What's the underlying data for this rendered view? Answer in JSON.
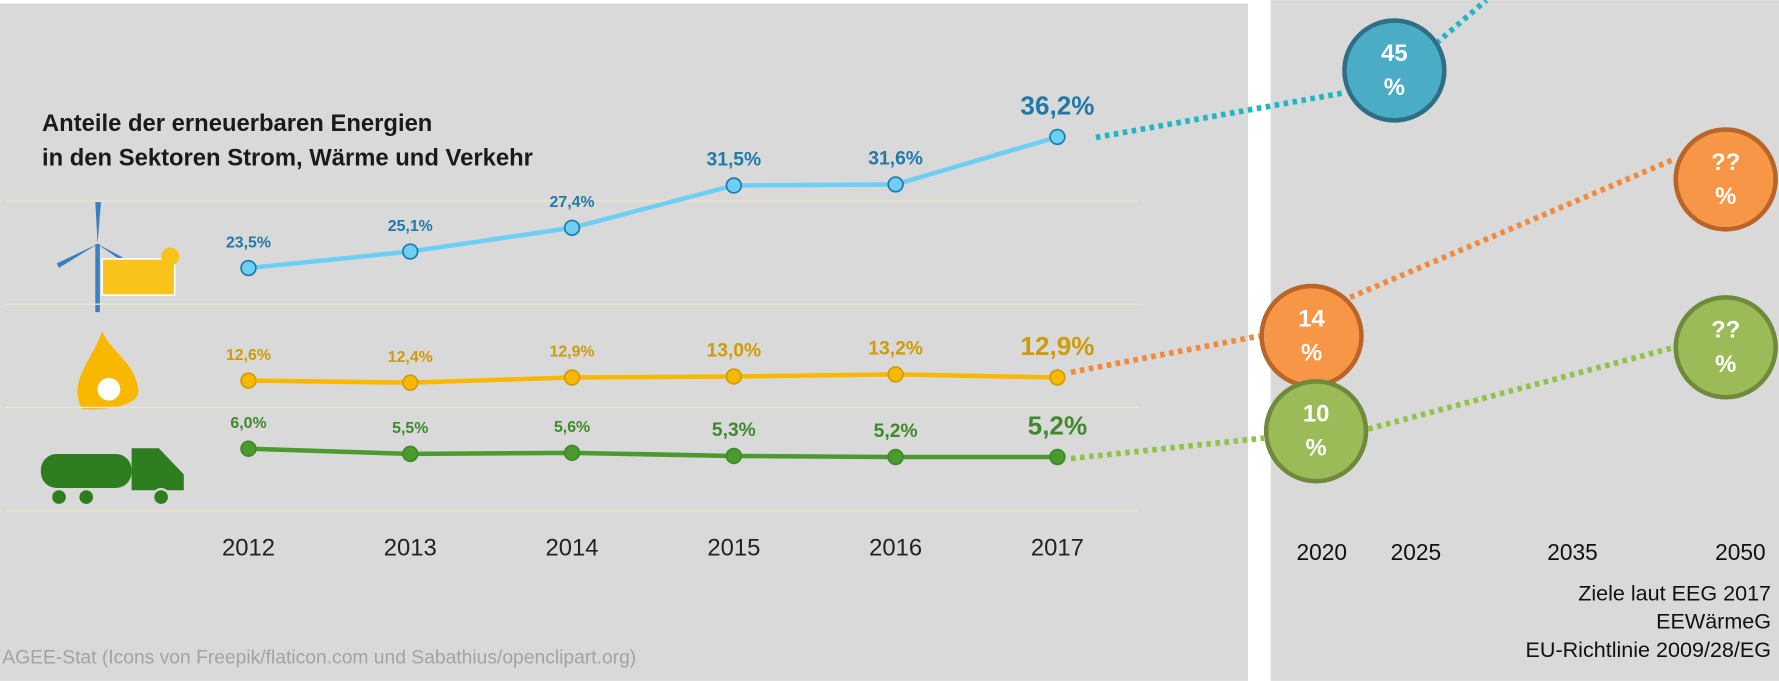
{
  "chart_data": {
    "type": "line",
    "title": [
      "Anteile der erneuerbaren Energien",
      "in den Sektoren Strom, Wärme und Verkehr"
    ],
    "categories": [
      "2012",
      "2013",
      "2014",
      "2015",
      "2016",
      "2017"
    ],
    "ylim": [
      0,
      40
    ],
    "yticks": [
      0,
      10,
      20,
      30
    ],
    "grid": true,
    "series": [
      {
        "color": "#6dcff6",
        "label_color": "#1f7aa8",
        "values": [
          23.5,
          25.1,
          27.4,
          31.5,
          31.6,
          36.2
        ],
        "value_labels": [
          "23,5%",
          "25,1%",
          "27,4%",
          "31,5%",
          "31,6%",
          "36,2%"
        ]
      },
      {
        "color": "#f9b800",
        "label_color": "#cf9b06",
        "values": [
          12.6,
          12.4,
          12.9,
          13.0,
          13.2,
          12.9
        ],
        "value_labels": [
          "12,6%",
          "12,4%",
          "12,9%",
          "13,0%",
          "13,2%",
          "12,9%"
        ]
      },
      {
        "color": "#4a9a2e",
        "label_color": "#3e8a2a",
        "values": [
          6.0,
          5.5,
          5.6,
          5.3,
          5.2,
          5.2
        ],
        "value_labels": [
          "6,0%",
          "5,5%",
          "5,6%",
          "5,3%",
          "5,2%",
          "5,2%"
        ]
      }
    ],
    "source": "AGEE-Stat (Icons von Freepik/flaticon.com und Sabathius/openclipart.org)"
  },
  "targets": {
    "years": [
      "2020",
      "2025",
      "2035",
      "2050"
    ],
    "circles": [
      {
        "top": "45",
        "bottom": "%"
      },
      {
        "top": "??",
        "bottom": "%"
      },
      {
        "top": "14",
        "bottom": "%"
      },
      {
        "top": "??",
        "bottom": "%"
      },
      {
        "top": "10",
        "bottom": "%"
      }
    ],
    "sources": [
      "Ziele laut EEG 2017",
      "EEWärmeG",
      "EU-Richtlinie 2009/28/EG"
    ]
  }
}
